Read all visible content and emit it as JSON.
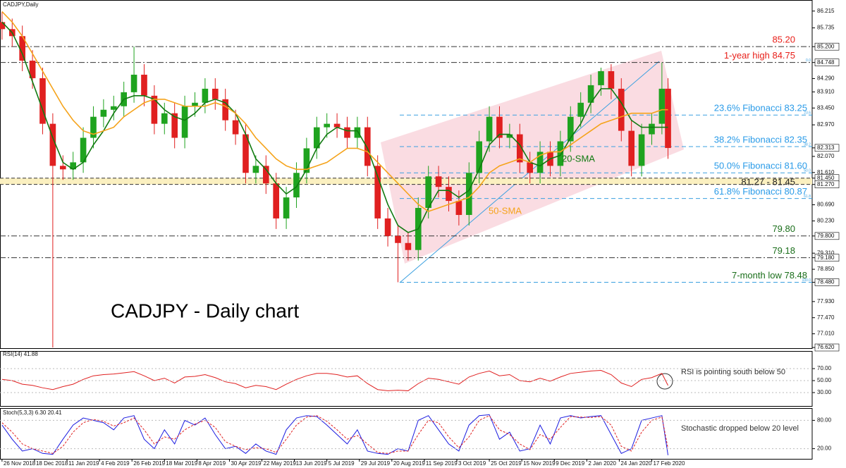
{
  "chart_data": [
    {
      "type": "candlestick",
      "title": "CADJPY,Daily",
      "annotation": "CADJPY - Daily chart",
      "up_color": "#1fa31f",
      "down_color": "#e02020",
      "x": [
        0,
        5,
        10,
        15,
        20,
        25,
        30,
        35,
        40,
        45,
        50,
        55,
        60,
        65,
        70,
        75,
        80,
        85,
        90,
        95,
        100,
        105,
        110,
        115,
        120,
        125,
        130,
        135,
        140,
        145,
        150,
        155,
        160,
        165,
        170,
        175,
        180,
        185,
        190,
        195,
        200,
        205,
        210,
        215,
        220,
        225,
        230,
        235,
        240,
        245,
        250,
        255,
        260,
        265,
        270,
        275,
        280,
        285,
        290,
        295,
        300,
        305,
        310,
        315,
        320,
        325,
        328
      ],
      "open": [
        85.9,
        85.7,
        85.5,
        84.8,
        84.3,
        83.0,
        81.8,
        81.7,
        81.9,
        82.6,
        83.2,
        83.4,
        83.5,
        83.9,
        84.4,
        83.8,
        83.0,
        83.3,
        82.6,
        83.5,
        83.6,
        84.0,
        83.7,
        83.1,
        82.7,
        81.6,
        81.8,
        81.3,
        80.3,
        80.9,
        81.6,
        82.3,
        82.9,
        83.0,
        82.9,
        82.6,
        82.9,
        81.8,
        80.3,
        79.8,
        79.6,
        79.4,
        80.6,
        81.5,
        81.2,
        80.8,
        80.4,
        81.6,
        82.5,
        83.2,
        82.6,
        82.7,
        81.9,
        81.6,
        82.2,
        81.8,
        82.5,
        83.2,
        83.6,
        84.1,
        84.5,
        84.0,
        82.8,
        81.8,
        82.7,
        83.0,
        84.0
      ],
      "high": [
        86.2,
        86.0,
        85.8,
        85.1,
        84.6,
        83.3,
        82.1,
        82.2,
        82.9,
        83.5,
        83.7,
        83.8,
        84.2,
        85.2,
        84.7,
        84.1,
        83.6,
        83.6,
        83.8,
        83.9,
        84.3,
        84.3,
        84.0,
        83.4,
        83.0,
        82.1,
        82.1,
        81.6,
        81.2,
        81.9,
        82.6,
        83.2,
        83.3,
        83.3,
        83.2,
        83.2,
        83.2,
        82.1,
        80.6,
        80.1,
        79.9,
        80.9,
        81.8,
        81.8,
        81.5,
        81.1,
        81.9,
        82.8,
        83.5,
        83.5,
        83.0,
        83.0,
        82.2,
        82.5,
        82.5,
        82.8,
        83.5,
        83.9,
        84.4,
        84.6,
        84.7,
        84.3,
        83.1,
        83.0,
        83.3,
        84.75,
        84.3
      ],
      "low": [
        85.4,
        85.2,
        84.5,
        84.0,
        82.7,
        76.62,
        81.4,
        81.4,
        81.6,
        82.3,
        82.9,
        83.1,
        83.2,
        83.6,
        83.5,
        82.7,
        82.7,
        82.3,
        82.3,
        83.2,
        83.3,
        83.4,
        82.8,
        82.4,
        81.3,
        81.3,
        81.0,
        80.0,
        80.0,
        80.6,
        81.3,
        82.0,
        82.6,
        82.6,
        82.3,
        82.3,
        81.5,
        80.0,
        79.5,
        78.48,
        79.1,
        79.1,
        80.3,
        80.9,
        80.5,
        80.1,
        80.1,
        81.3,
        82.2,
        82.3,
        82.3,
        81.6,
        81.3,
        81.3,
        81.5,
        81.5,
        82.2,
        82.9,
        83.3,
        83.8,
        83.7,
        82.5,
        81.5,
        81.5,
        82.4,
        82.7,
        82.0
      ],
      "close": [
        85.7,
        85.5,
        84.8,
        84.3,
        83.0,
        81.8,
        81.7,
        81.9,
        82.6,
        83.2,
        83.4,
        83.5,
        83.9,
        84.4,
        83.8,
        83.0,
        83.3,
        82.6,
        83.5,
        83.6,
        84.0,
        83.7,
        83.1,
        82.7,
        81.6,
        81.8,
        81.3,
        80.3,
        80.9,
        81.6,
        82.3,
        82.9,
        83.0,
        82.9,
        82.6,
        82.9,
        81.8,
        80.3,
        79.8,
        79.6,
        79.4,
        80.6,
        81.5,
        81.2,
        80.8,
        80.4,
        81.6,
        82.5,
        83.2,
        82.6,
        82.7,
        81.9,
        81.6,
        82.2,
        81.8,
        82.5,
        83.2,
        83.6,
        84.1,
        84.5,
        84.0,
        82.8,
        81.8,
        82.7,
        83.0,
        84.0,
        82.31
      ],
      "series": [
        {
          "name": "20-SMA",
          "color": "#117a11",
          "values": [
            85.9,
            85.6,
            85.0,
            84.2,
            83.4,
            82.6,
            81.9,
            81.7,
            81.9,
            82.4,
            82.8,
            83.3,
            83.7,
            83.8,
            83.8,
            83.7,
            83.4,
            83.2,
            83.1,
            83.3,
            83.6,
            83.7,
            83.6,
            83.3,
            82.7,
            82.0,
            81.7,
            81.3,
            81.0,
            81.2,
            81.7,
            82.3,
            82.7,
            82.9,
            82.8,
            82.8,
            82.3,
            81.5,
            80.7,
            80.1,
            79.9,
            80.0,
            80.6,
            81.1,
            81.1,
            80.9,
            81.1,
            81.7,
            82.4,
            82.7,
            82.7,
            82.4,
            81.9,
            81.8,
            82.0,
            82.1,
            82.6,
            83.0,
            83.6,
            84.0,
            84.0,
            83.6,
            83.1,
            82.9,
            82.9,
            82.9,
            82.9
          ]
        },
        {
          "name": "50-SMA",
          "color": "#f5a31a",
          "values": [
            86.2,
            85.9,
            85.5,
            85.0,
            84.5,
            84.0,
            83.5,
            83.1,
            82.8,
            82.7,
            82.8,
            82.9,
            83.2,
            83.4,
            83.6,
            83.7,
            83.7,
            83.6,
            83.5,
            83.5,
            83.5,
            83.6,
            83.5,
            83.3,
            83.0,
            82.6,
            82.3,
            82.0,
            81.8,
            81.7,
            81.7,
            81.8,
            81.9,
            82.1,
            82.3,
            82.3,
            82.2,
            81.9,
            81.6,
            81.3,
            81.0,
            80.7,
            80.5,
            80.6,
            80.7,
            80.8,
            80.9,
            81.2,
            81.6,
            81.8,
            81.9,
            82.0,
            81.9,
            82.1,
            82.2,
            82.2,
            82.4,
            82.6,
            82.8,
            83.0,
            83.1,
            83.2,
            83.3,
            83.3,
            83.3,
            83.4,
            83.4
          ]
        }
      ],
      "xlim": [
        -1,
        399
      ],
      "ylim": [
        76.6,
        86.45
      ],
      "yticks": [
        {
          "value": 86.215,
          "label": "86.215"
        },
        {
          "value": 85.735,
          "label": "85.735"
        },
        {
          "value": 85.2,
          "label": "85.200",
          "box": true
        },
        {
          "value": 84.748,
          "label": "84.748",
          "box": true
        },
        {
          "value": 84.29,
          "label": "84.290"
        },
        {
          "value": 83.91,
          "label": "83.910"
        },
        {
          "value": 83.45,
          "label": "83.450"
        },
        {
          "value": 82.97,
          "label": "82.970"
        },
        {
          "value": 82.313,
          "label": "82.313",
          "box": true
        },
        {
          "value": 82.07,
          "label": "82.070"
        },
        {
          "value": 81.61,
          "label": "81.610"
        },
        {
          "value": 81.45,
          "label": "81.450",
          "box": true
        },
        {
          "value": 81.27,
          "label": "81.270",
          "box": true
        },
        {
          "value": 80.69,
          "label": "80.690"
        },
        {
          "value": 80.23,
          "label": "80.230"
        },
        {
          "value": 79.8,
          "label": "79.800",
          "box": true
        },
        {
          "value": 79.31,
          "label": "79.310"
        },
        {
          "value": 79.18,
          "label": "79.180",
          "box": true
        },
        {
          "value": 78.85,
          "label": "78.850"
        },
        {
          "value": 78.48,
          "label": "78.480",
          "box": true
        },
        {
          "value": 77.93,
          "label": "77.930"
        },
        {
          "value": 77.47,
          "label": "77.470"
        },
        {
          "value": 77.01,
          "label": "77.010"
        },
        {
          "value": 76.62,
          "label": "76.620",
          "box": true
        }
      ],
      "levels": [
        {
          "label": "85.20",
          "value": 85.2,
          "color": "#e8201a",
          "style": "dash"
        },
        {
          "label": "1-year high 84.75",
          "value": 84.75,
          "color": "#e8201a",
          "style": "dash",
          "tag": "0.0"
        },
        {
          "label": "23.6% Fibonacci 83.25",
          "value": 83.25,
          "color": "#2a9be8",
          "style": "fib",
          "tag": "23.6"
        },
        {
          "label": "38.2% Fibonacci 82.35",
          "value": 82.35,
          "color": "#2a9be8",
          "style": "fib",
          "tag": "38.2"
        },
        {
          "label": "50.0% Fibonacci 81.60",
          "value": 81.6,
          "color": "#2a9be8",
          "style": "fib",
          "tag": "50.0"
        },
        {
          "label": "81.27 - 81.45",
          "low": 81.27,
          "high": 81.45,
          "color": "#222222",
          "style": "band"
        },
        {
          "label": "61.8% Fibonacci 80.87",
          "value": 80.87,
          "color": "#2a9be8",
          "style": "fib",
          "tag": "61.8"
        },
        {
          "label": "79.80",
          "value": 79.8,
          "color": "#1a6e1a",
          "style": "dash"
        },
        {
          "label": "79.18",
          "value": 79.18,
          "color": "#1a6e1a",
          "style": "dash"
        },
        {
          "label": "7-month low 78.48",
          "value": 78.48,
          "color": "#1a6e1a",
          "style": "fib",
          "tag": "100.0"
        }
      ]
    },
    {
      "type": "line",
      "title": "RSI(14) 41.88",
      "annotation": "RSI is pointing south below 50",
      "x": [
        0,
        5,
        10,
        15,
        20,
        25,
        30,
        35,
        40,
        45,
        50,
        55,
        60,
        65,
        70,
        75,
        80,
        85,
        90,
        95,
        100,
        105,
        110,
        115,
        120,
        125,
        130,
        135,
        140,
        145,
        150,
        155,
        160,
        165,
        170,
        175,
        180,
        185,
        190,
        195,
        200,
        205,
        210,
        215,
        220,
        225,
        230,
        235,
        240,
        245,
        250,
        255,
        260,
        265,
        270,
        275,
        280,
        285,
        290,
        295,
        300,
        305,
        310,
        315,
        320,
        325,
        328
      ],
      "series": [
        {
          "color": "#e02020",
          "values": [
            52,
            50,
            44,
            42,
            38,
            35,
            40,
            44,
            52,
            58,
            60,
            61,
            63,
            65,
            58,
            50,
            54,
            46,
            56,
            57,
            60,
            55,
            48,
            45,
            38,
            42,
            40,
            35,
            44,
            52,
            58,
            62,
            62,
            60,
            56,
            58,
            45,
            35,
            33,
            34,
            33,
            45,
            54,
            52,
            48,
            44,
            56,
            62,
            66,
            58,
            60,
            50,
            48,
            54,
            49,
            56,
            62,
            64,
            66,
            67,
            60,
            46,
            40,
            52,
            55,
            62,
            41.88
          ]
        }
      ],
      "xlim": [
        -1,
        399
      ],
      "ylim": [
        7.6,
        97.1
      ],
      "yticks": [
        {
          "value": 70,
          "label": "70.00"
        },
        {
          "value": 50,
          "label": "50.00"
        },
        {
          "value": 30,
          "label": "30.00"
        }
      ]
    },
    {
      "type": "line",
      "title": "Stoch(5,3,3) 6.30 20.41",
      "annotation": "Stochastic dropped below 20 level",
      "x": [
        0,
        5,
        10,
        15,
        20,
        25,
        30,
        35,
        40,
        45,
        50,
        55,
        60,
        65,
        70,
        75,
        80,
        85,
        90,
        95,
        100,
        105,
        110,
        115,
        120,
        125,
        130,
        135,
        140,
        145,
        150,
        155,
        160,
        165,
        170,
        175,
        180,
        185,
        190,
        195,
        200,
        205,
        210,
        215,
        220,
        225,
        230,
        235,
        240,
        245,
        250,
        255,
        260,
        265,
        270,
        275,
        280,
        285,
        290,
        295,
        300,
        305,
        310,
        315,
        320,
        325,
        328
      ],
      "series": [
        {
          "color": "#1a1ae0",
          "values": [
            70,
            40,
            15,
            20,
            10,
            8,
            40,
            70,
            85,
            80,
            75,
            60,
            85,
            90,
            40,
            20,
            60,
            30,
            80,
            70,
            85,
            50,
            20,
            25,
            10,
            30,
            15,
            8,
            60,
            85,
            90,
            88,
            70,
            50,
            30,
            60,
            15,
            10,
            8,
            20,
            15,
            80,
            90,
            60,
            30,
            15,
            70,
            90,
            92,
            40,
            55,
            15,
            20,
            70,
            30,
            85,
            90,
            85,
            88,
            90,
            50,
            10,
            20,
            80,
            85,
            90,
            6.3
          ]
        },
        {
          "color": "#e02020",
          "dash": true,
          "values": [
            75,
            55,
            30,
            20,
            15,
            10,
            25,
            55,
            75,
            82,
            78,
            68,
            75,
            85,
            60,
            30,
            45,
            40,
            60,
            72,
            80,
            65,
            35,
            25,
            18,
            22,
            20,
            12,
            40,
            70,
            87,
            90,
            78,
            60,
            40,
            48,
            30,
            12,
            10,
            15,
            15,
            50,
            80,
            75,
            45,
            22,
            45,
            80,
            90,
            60,
            50,
            30,
            18,
            50,
            40,
            65,
            88,
            87,
            86,
            88,
            70,
            25,
            15,
            55,
            80,
            87,
            20.41
          ]
        }
      ],
      "xlim": [
        -1,
        399
      ],
      "ylim": [
        0,
        100
      ],
      "yticks": [
        {
          "value": 80,
          "label": "80.00"
        },
        {
          "value": 20,
          "label": "20.00"
        }
      ],
      "xticks": [
        {
          "value": 0,
          "label": "26 Nov 2018"
        },
        {
          "value": 16,
          "label": "18 Dec 2018"
        },
        {
          "value": 32,
          "label": "11 Jan 2019"
        },
        {
          "value": 48,
          "label": "4 Feb 2019"
        },
        {
          "value": 64,
          "label": "26 Feb 2019"
        },
        {
          "value": 80,
          "label": "18 Mar 2019"
        },
        {
          "value": 96,
          "label": "8 Apr 2019"
        },
        {
          "value": 112,
          "label": "30 Apr 2019"
        },
        {
          "value": 128,
          "label": "22 May 2019"
        },
        {
          "value": 144,
          "label": "13 Jun 2019"
        },
        {
          "value": 160,
          "label": "5 Jul 2019"
        },
        {
          "value": 176,
          "label": "29 Jul 2019"
        },
        {
          "value": 192,
          "label": "20 Aug 2019"
        },
        {
          "value": 208,
          "label": "11 Sep 2019"
        },
        {
          "value": 224,
          "label": "3 Oct 2019"
        },
        {
          "value": 240,
          "label": "25 Oct 2019"
        },
        {
          "value": 256,
          "label": "15 Nov 2019"
        },
        {
          "value": 272,
          "label": "9 Dec 2019"
        },
        {
          "value": 288,
          "label": "2 Jan 2020"
        },
        {
          "value": 304,
          "label": "24 Jan 2020"
        },
        {
          "value": 320,
          "label": "17 Feb 2020"
        }
      ]
    }
  ]
}
